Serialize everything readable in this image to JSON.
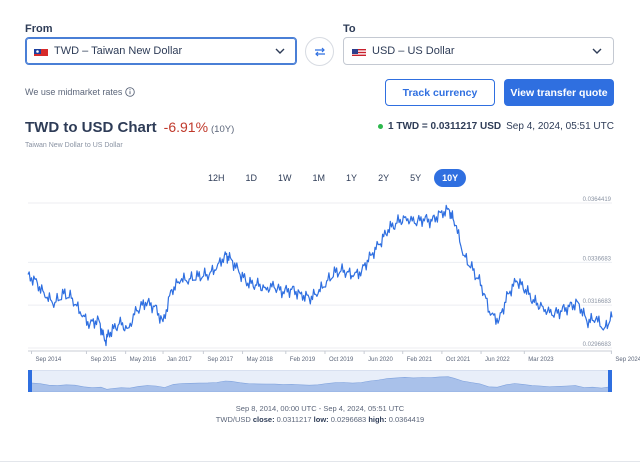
{
  "from": {
    "label": "From",
    "value": "TWD – Taiwan New Dollar",
    "flag": "taiwan-flag"
  },
  "to": {
    "label": "To",
    "value": "USD – US Dollar",
    "flag": "us-flag"
  },
  "midmarket": "We use midmarket rates",
  "buttons": {
    "track": "Track currency",
    "quote": "View transfer quote"
  },
  "title": {
    "main": "TWD to USD Chart",
    "change": "-6.91%",
    "range": "(10Y)",
    "subtitle": "Taiwan New Dollar to US Dollar"
  },
  "rate": {
    "value": "1 TWD = 0.0311217 USD",
    "time": "Sep 4, 2024, 05:51 UTC"
  },
  "ranges": [
    "12H",
    "1D",
    "1W",
    "1M",
    "1Y",
    "2Y",
    "5Y",
    "10Y"
  ],
  "selected_range": "10Y",
  "footer": {
    "dates": "Sep 8, 2014, 00:00 UTC - Sep 4, 2024, 05:51 UTC",
    "pair": "TWD/USD",
    "close_label": "close:",
    "close": "0.0311217",
    "low_label": "low:",
    "low": "0.0296683",
    "high_label": "high:",
    "high": "0.0364419"
  },
  "colors": {
    "accent": "#2f6fe0",
    "line": "#2f6fe0",
    "negative": "#c0392b",
    "live": "#2db84d"
  },
  "chart_data": {
    "type": "line",
    "title": "TWD to USD Chart",
    "x_ticks": [
      "Sep 2014",
      "Sep 2015",
      "May 2016",
      "Jan 2017",
      "Sep 2017",
      "May 2018",
      "Feb 2019",
      "Oct 2019",
      "Jun 2020",
      "Feb 2021",
      "Oct 2021",
      "Jun 2022",
      "Mar 2023",
      "Sep 2024"
    ],
    "y_ticks": [
      "0.0364419",
      "0.0336683",
      "0.0316683",
      "0.0296683"
    ],
    "ylim": [
      0.0296683,
      0.0364419
    ],
    "grid": true,
    "series": [
      {
        "x": [
          2014.69,
          2014.85,
          2015.0,
          2015.15,
          2015.3,
          2015.45,
          2015.6,
          2015.75,
          2015.9,
          2016.0,
          2016.1,
          2016.25,
          2016.4,
          2016.55,
          2016.7,
          2016.85,
          2017.0,
          2017.15,
          2017.3,
          2017.45,
          2017.6,
          2017.75,
          2017.9,
          2018.05,
          2018.15,
          2018.3,
          2018.45,
          2018.6,
          2018.75,
          2018.9,
          2019.05,
          2019.2,
          2019.35,
          2019.5,
          2019.65,
          2019.8,
          2019.95,
          2020.1,
          2020.25,
          2020.4,
          2020.55,
          2020.7,
          2020.85,
          2021.0,
          2021.15,
          2021.3,
          2021.45,
          2021.6,
          2021.75,
          2021.9,
          2022.0,
          2022.15,
          2022.3,
          2022.45,
          2022.6,
          2022.75,
          2022.9,
          2023.05,
          2023.2,
          2023.35,
          2023.5,
          2023.65,
          2023.8,
          2023.95,
          2024.1,
          2024.25,
          2024.4,
          2024.55,
          2024.68
        ],
        "y": [
          0.0331,
          0.0327,
          0.032,
          0.0318,
          0.0322,
          0.032,
          0.0312,
          0.0308,
          0.031,
          0.03,
          0.0304,
          0.0308,
          0.0306,
          0.0314,
          0.0318,
          0.0316,
          0.0309,
          0.0324,
          0.0328,
          0.0329,
          0.033,
          0.0331,
          0.0333,
          0.034,
          0.0339,
          0.0332,
          0.0327,
          0.0326,
          0.0325,
          0.0325,
          0.0323,
          0.0324,
          0.0322,
          0.032,
          0.0322,
          0.0328,
          0.0332,
          0.0333,
          0.033,
          0.0333,
          0.034,
          0.0345,
          0.0352,
          0.0355,
          0.0358,
          0.0355,
          0.0357,
          0.0356,
          0.036,
          0.0361,
          0.0354,
          0.034,
          0.0333,
          0.0326,
          0.0312,
          0.031,
          0.0322,
          0.0328,
          0.0324,
          0.0318,
          0.0316,
          0.0312,
          0.0314,
          0.0316,
          0.0318,
          0.0309,
          0.031,
          0.0306,
          0.0311
        ]
      }
    ]
  }
}
